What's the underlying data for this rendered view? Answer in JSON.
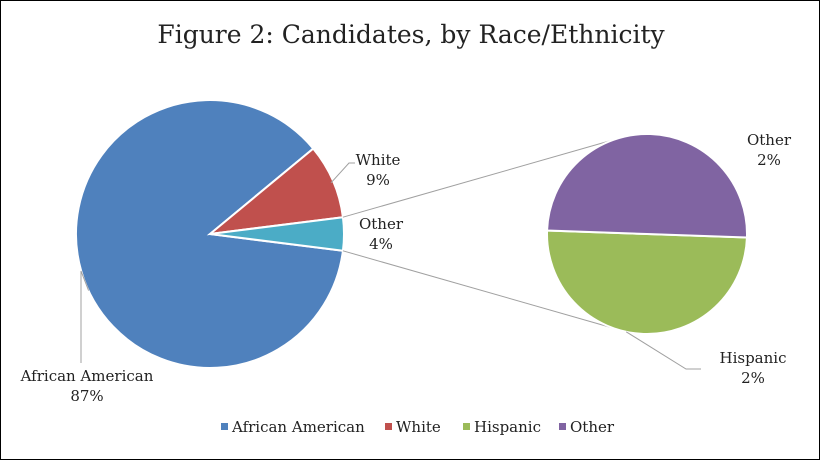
{
  "chart_data": {
    "type": "pie",
    "subtype": "pie-of-pie",
    "title": "Figure 2: Candidates, by Race/Ethnicity",
    "slices": [
      {
        "name": "African American",
        "value": 87,
        "label": "African American",
        "pct": "87%",
        "color": "#4f81bd"
      },
      {
        "name": "White",
        "value": 9,
        "label": "White",
        "pct": "9%",
        "color": "#c0504d"
      },
      {
        "name": "Other",
        "value": 4,
        "label": "Other",
        "pct": "4%",
        "color": "#4bacc6"
      }
    ],
    "secondary_pie": {
      "source": "Other",
      "slices": [
        {
          "name": "Hispanic",
          "value": 2,
          "label": "Hispanic",
          "pct": "2%",
          "color": "#9bbb59"
        },
        {
          "name": "Other",
          "value": 2,
          "label": "Other",
          "pct": "2%",
          "color": "#8064a2"
        }
      ]
    },
    "legend": {
      "position": "bottom",
      "items": [
        {
          "label": "African American",
          "color": "#4f81bd"
        },
        {
          "label": "White",
          "color": "#c0504d"
        },
        {
          "label": "Hispanic",
          "color": "#9bbb59"
        },
        {
          "label": "Other",
          "color": "#8064a2"
        }
      ]
    }
  }
}
